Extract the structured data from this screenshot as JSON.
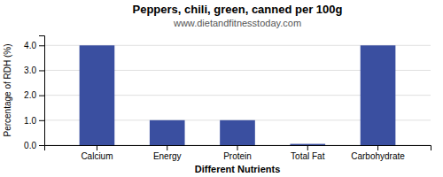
{
  "chart_data": {
    "type": "bar",
    "title": "Peppers, chili, green, canned per 100g",
    "subtitle": "www.dietandfitnesstoday.com",
    "xlabel": "Different Nutrients",
    "ylabel": "Percentage of RDH (%)",
    "categories": [
      "Calcium",
      "Energy",
      "Protein",
      "Total Fat",
      "Carbohydrate"
    ],
    "values": [
      4.0,
      1.0,
      1.0,
      0.05,
      4.0
    ],
    "color": "#3a4fa0",
    "ylim": [
      0,
      4.4
    ],
    "yticks": [
      {
        "value": 0,
        "label": "0.0"
      },
      {
        "value": 1,
        "label": "1.0"
      },
      {
        "value": 2,
        "label": "2.0"
      },
      {
        "value": 3,
        "label": "3.0"
      },
      {
        "value": 4,
        "label": "4.0"
      }
    ],
    "grid": true
  }
}
